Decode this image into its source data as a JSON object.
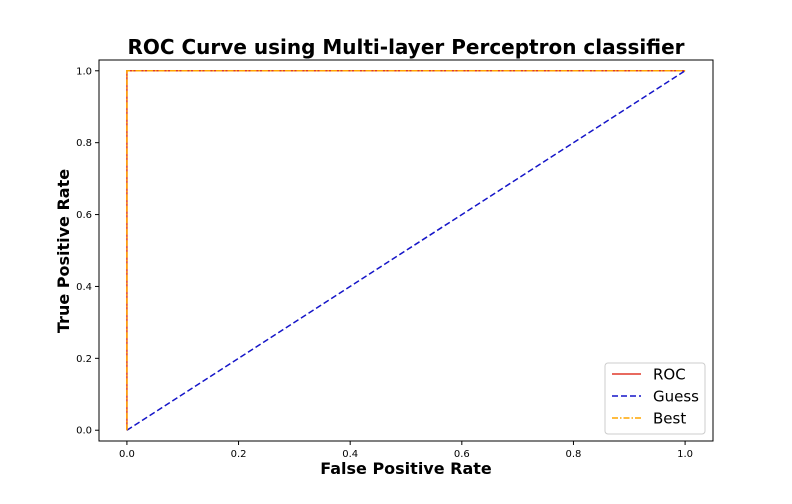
{
  "chart_data": {
    "type": "line",
    "title": "ROC Curve using Multi-layer Perceptron classifier",
    "xlabel": "False Positive Rate",
    "ylabel": "True Positive Rate",
    "xlim": [
      -0.05,
      1.05
    ],
    "ylim": [
      -0.03,
      1.03
    ],
    "xticks": [
      "0.0",
      "0.2",
      "0.4",
      "0.6",
      "0.8",
      "1.0"
    ],
    "yticks": [
      "0.0",
      "0.2",
      "0.4",
      "0.6",
      "0.8",
      "1.0"
    ],
    "grid": false,
    "legend_position": "bottom-right",
    "series": [
      {
        "name": "ROC",
        "color": "#e0382a",
        "style": "solid",
        "x": [
          0,
          0,
          1
        ],
        "y": [
          0,
          1,
          1
        ]
      },
      {
        "name": "Guess",
        "color": "#1515c8",
        "style": "dashed",
        "x": [
          0,
          1
        ],
        "y": [
          0,
          1
        ]
      },
      {
        "name": "Best",
        "color": "#ffa500",
        "style": "dashdot",
        "x": [
          0,
          0,
          1
        ],
        "y": [
          0,
          1,
          1
        ]
      }
    ]
  }
}
